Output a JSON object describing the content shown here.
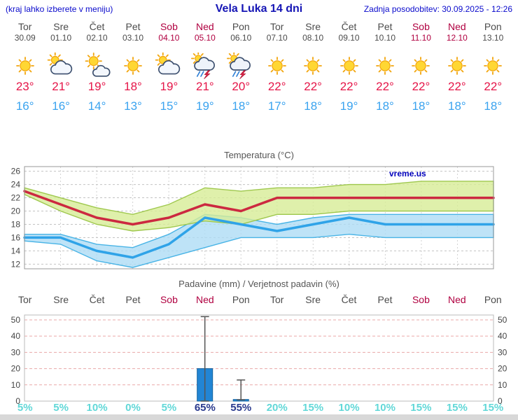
{
  "header": {
    "hint": "(kraj lahko izberete v meniju)",
    "title": "Vela Luka 14 dni",
    "updated": "Zadnja posodobitev: 30.09.2025 - 12:26"
  },
  "colors": {
    "link_blue": "#0a0acc",
    "weekend_red": "#b00040",
    "weekday_gray": "#4c4c4c",
    "tmax_red": "#e51548",
    "tmin_blue": "#3aa3ef",
    "prob_low": "#62d8d8",
    "prob_high": "#2a3a8e",
    "line_max": "#cc2940",
    "line_min": "#2fa3e8",
    "band_max": "#d7ec96",
    "band_min": "#aedcf5",
    "bar_blue": "#2285d4"
  },
  "days": [
    {
      "name": "Tor",
      "date": "30.09",
      "weekend": false,
      "icon": "sunny",
      "tmax": "23°",
      "tmin": "16°",
      "prob": "5%",
      "prob_high": false
    },
    {
      "name": "Sre",
      "date": "01.10",
      "weekend": false,
      "icon": "mostly-cloudy",
      "tmax": "21°",
      "tmin": "16°",
      "prob": "5%",
      "prob_high": false
    },
    {
      "name": "Čet",
      "date": "02.10",
      "weekend": false,
      "icon": "partly-cloudy",
      "tmax": "19°",
      "tmin": "14°",
      "prob": "10%",
      "prob_high": false
    },
    {
      "name": "Pet",
      "date": "03.10",
      "weekend": false,
      "icon": "sunny",
      "tmax": "18°",
      "tmin": "13°",
      "prob": "0%",
      "prob_high": false
    },
    {
      "name": "Sob",
      "date": "04.10",
      "weekend": true,
      "icon": "mostly-cloudy",
      "tmax": "19°",
      "tmin": "15°",
      "prob": "5%",
      "prob_high": false
    },
    {
      "name": "Ned",
      "date": "05.10",
      "weekend": true,
      "icon": "thunderstorm",
      "tmax": "21°",
      "tmin": "19°",
      "prob": "65%",
      "prob_high": true
    },
    {
      "name": "Pon",
      "date": "06.10",
      "weekend": false,
      "icon": "thunderstorm",
      "tmax": "20°",
      "tmin": "18°",
      "prob": "55%",
      "prob_high": true
    },
    {
      "name": "Tor",
      "date": "07.10",
      "weekend": false,
      "icon": "sunny",
      "tmax": "22°",
      "tmin": "17°",
      "prob": "20%",
      "prob_high": false
    },
    {
      "name": "Sre",
      "date": "08.10",
      "weekend": false,
      "icon": "sunny",
      "tmax": "22°",
      "tmin": "18°",
      "prob": "15%",
      "prob_high": false
    },
    {
      "name": "Čet",
      "date": "09.10",
      "weekend": false,
      "icon": "sunny",
      "tmax": "22°",
      "tmin": "19°",
      "prob": "10%",
      "prob_high": false
    },
    {
      "name": "Pet",
      "date": "10.10",
      "weekend": false,
      "icon": "sunny",
      "tmax": "22°",
      "tmin": "18°",
      "prob": "10%",
      "prob_high": false
    },
    {
      "name": "Sob",
      "date": "11.10",
      "weekend": true,
      "icon": "sunny",
      "tmax": "22°",
      "tmin": "18°",
      "prob": "15%",
      "prob_high": false
    },
    {
      "name": "Ned",
      "date": "12.10",
      "weekend": true,
      "icon": "sunny",
      "tmax": "22°",
      "tmin": "18°",
      "prob": "15%",
      "prob_high": false
    },
    {
      "name": "Pon",
      "date": "13.10",
      "weekend": false,
      "icon": "sunny",
      "tmax": "22°",
      "tmin": "18°",
      "prob": "15%",
      "prob_high": false
    }
  ],
  "chart_data": [
    {
      "type": "line",
      "title": "Temperatura (°C)",
      "watermark": "vreme.us",
      "x_labels": [
        "Tor",
        "Sre",
        "Čet",
        "Pet",
        "Sob",
        "Ned",
        "Pon",
        "Tor",
        "Sre",
        "Čet",
        "Pet",
        "Sob",
        "Ned",
        "Pon"
      ],
      "ylim": [
        11.3,
        26.7
      ],
      "yticks": [
        12,
        14,
        16,
        18,
        20,
        22,
        24,
        26
      ],
      "legend_position": "none",
      "grid": true,
      "series": [
        {
          "name": "tmax",
          "values": [
            23,
            21,
            19,
            18,
            19,
            21,
            20,
            22,
            22,
            22,
            22,
            22,
            22,
            22
          ]
        },
        {
          "name": "tmin",
          "values": [
            16,
            16,
            14,
            13,
            15,
            19,
            18,
            17,
            18,
            19,
            18,
            18,
            18,
            18
          ]
        },
        {
          "name": "tmax_band_upper",
          "values": [
            23.5,
            22,
            20.5,
            19.5,
            21,
            23.5,
            23,
            23.5,
            23.5,
            24,
            24,
            24.5,
            24.5,
            24.5
          ]
        },
        {
          "name": "tmax_band_lower",
          "values": [
            22.5,
            20,
            18,
            17,
            17.5,
            18.5,
            18,
            19.5,
            19.5,
            20,
            20,
            20,
            20,
            20
          ]
        },
        {
          "name": "tmin_band_upper",
          "values": [
            16.5,
            16.5,
            15,
            14.5,
            16.5,
            19.5,
            19,
            18,
            19,
            19.5,
            19.5,
            19.5,
            19.5,
            19.5
          ]
        },
        {
          "name": "tmin_band_lower",
          "values": [
            15.5,
            15,
            12.5,
            11.5,
            13,
            14.5,
            16,
            16,
            16,
            16.5,
            16,
            16,
            16,
            16
          ]
        }
      ]
    },
    {
      "type": "bar",
      "title": "Padavine (mm) / Verjetnost padavin (%)",
      "categories": [
        "Tor",
        "Sre",
        "Čet",
        "Pet",
        "Sob",
        "Ned",
        "Pon",
        "Tor",
        "Sre",
        "Čet",
        "Pet",
        "Sob",
        "Ned",
        "Pon"
      ],
      "ylim": [
        0,
        53
      ],
      "yticks": [
        0,
        10,
        20,
        30,
        40,
        50
      ],
      "grid": true,
      "precip_mm": [
        0,
        0,
        0,
        0,
        0,
        20,
        1,
        0,
        0,
        0,
        0,
        0,
        0,
        0
      ],
      "precip_whisker_max": [
        0,
        0,
        0,
        0,
        0,
        52,
        13,
        0,
        0,
        0,
        0,
        0,
        0,
        0
      ],
      "precip_whisker_min": [
        0,
        0,
        0,
        0,
        0,
        0,
        0.8,
        0,
        0,
        0,
        0,
        0,
        0,
        0
      ],
      "probability_pct": [
        5,
        5,
        10,
        0,
        5,
        65,
        55,
        20,
        15,
        10,
        10,
        15,
        15,
        15
      ]
    }
  ]
}
